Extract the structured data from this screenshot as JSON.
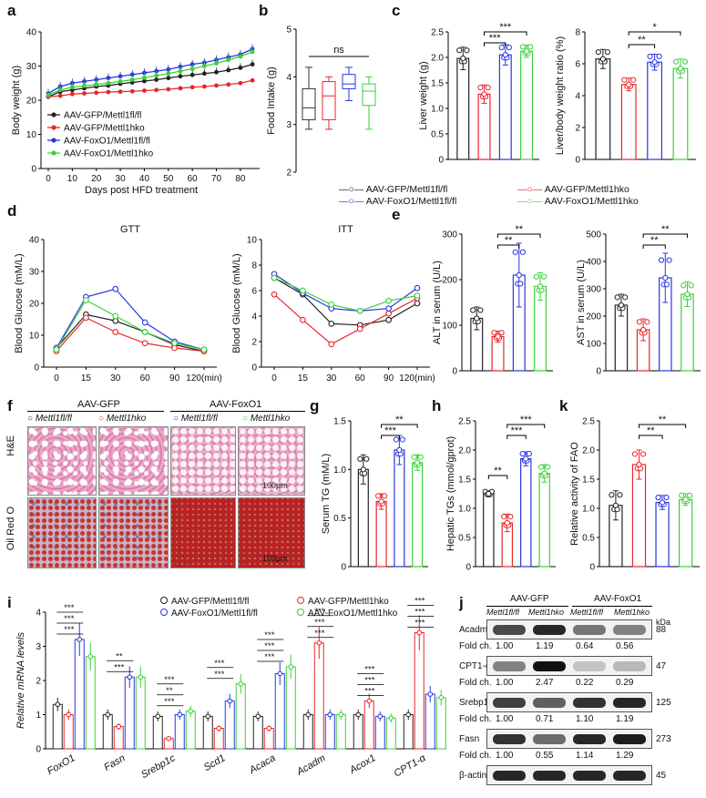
{
  "panel_letters": [
    "a",
    "b",
    "c",
    "d",
    "e",
    "f",
    "g",
    "h",
    "k",
    "i",
    "j"
  ],
  "colors": {
    "gfp_fl": "#222222",
    "gfp_hko": "#e8262a",
    "foxo_fl": "#2a36e0",
    "foxo_hko": "#3ccf3c",
    "box_gfp_fl": "#333333",
    "box_gfp_hko": "#e8262a",
    "box_foxo_fl": "#2a36e0",
    "box_foxo_hko": "#3ccf3c"
  },
  "legend_groups": [
    "AAV-GFP/Mettl1fl/fl",
    "AAV-GFP/Mettl1hko",
    "AAV-FoxO1/Mettl1fl/fl",
    "AAV-FoxO1/Mettl1hko"
  ],
  "chart_data": [
    {
      "id": "a",
      "type": "line",
      "ylabel": "Body weight (g)",
      "xlabel": "Days post HFD treatment",
      "ylim": [
        0,
        40
      ],
      "yticks": [
        0,
        10,
        20,
        30,
        40
      ],
      "xticks": [
        0,
        10,
        20,
        30,
        40,
        50,
        60,
        70,
        80
      ],
      "x": [
        0,
        5,
        10,
        15,
        20,
        25,
        30,
        35,
        40,
        45,
        50,
        55,
        60,
        65,
        70,
        75,
        80,
        85
      ],
      "series": [
        {
          "name": "AAV-GFP/Mettl1fl/fl",
          "values": [
            21,
            22.5,
            23,
            23.5,
            24,
            24.3,
            24.8,
            25.2,
            25.6,
            26,
            26.5,
            27,
            27.4,
            27.8,
            28.2,
            28.8,
            29.5,
            30.5
          ]
        },
        {
          "name": "AAV-GFP/Mettl1hko",
          "values": [
            21,
            21.3,
            21.8,
            22,
            22.2,
            22.4,
            22.5,
            22.6,
            22.8,
            23,
            23.2,
            23.5,
            23.8,
            24,
            24.3,
            24.6,
            25,
            25.8
          ]
        },
        {
          "name": "AAV-FoxO1/Mettl1fl/fl",
          "values": [
            22,
            24,
            25,
            25.5,
            26,
            26.5,
            27,
            27.5,
            28,
            28.5,
            29,
            29.8,
            30.5,
            31,
            31.8,
            32.6,
            33.4,
            35
          ]
        },
        {
          "name": "AAV-FoxO1/Mettl1hko",
          "values": [
            21.5,
            23,
            23.8,
            24.2,
            24.6,
            25,
            25.5,
            26,
            26.6,
            27.2,
            27.8,
            28.5,
            29.2,
            30,
            30.8,
            31.8,
            32.8,
            34.2
          ]
        }
      ]
    },
    {
      "id": "b",
      "type": "box",
      "ylabel": "Food Intake (g)",
      "ylim": [
        2,
        5
      ],
      "yticks": [
        2,
        3,
        4,
        5
      ],
      "annotation": "ns",
      "boxes": [
        {
          "min": 2.9,
          "q1": 3.1,
          "median": 3.35,
          "q3": 3.75,
          "max": 4.2
        },
        {
          "min": 2.9,
          "q1": 3.1,
          "median": 3.6,
          "q3": 3.9,
          "max": 4.0
        },
        {
          "min": 3.5,
          "q1": 3.75,
          "median": 3.85,
          "q3": 4.05,
          "max": 4.2
        },
        {
          "min": 2.9,
          "q1": 3.4,
          "median": 3.7,
          "q3": 3.85,
          "max": 4.0
        }
      ]
    },
    {
      "id": "c1",
      "type": "bar",
      "ylabel": "Liver weight (g)",
      "ylim": [
        0,
        2.5
      ],
      "yticks": [
        "0",
        "0.5",
        "1.0",
        "1.5",
        "2.0",
        "2.5"
      ],
      "values": [
        1.98,
        1.28,
        2.05,
        2.12
      ],
      "errors": [
        0.22,
        0.18,
        0.2,
        0.12
      ],
      "sig": [
        "***",
        "***"
      ]
    },
    {
      "id": "c2",
      "type": "bar",
      "ylabel": "Liver/body weight ratio (%)",
      "ylim": [
        0,
        8
      ],
      "yticks": [
        "0",
        "2",
        "4",
        "6",
        "8"
      ],
      "values": [
        6.3,
        4.7,
        6.1,
        5.7
      ],
      "errors": [
        0.6,
        0.4,
        0.5,
        0.6
      ],
      "sig": [
        "**",
        "*"
      ]
    },
    {
      "id": "d1",
      "type": "line",
      "title": "GTT",
      "ylabel": "Blood Glucose (mM/L)",
      "ylim": [
        0,
        40
      ],
      "yticks": [
        0,
        10,
        20,
        30,
        40
      ],
      "categories": [
        "0",
        "15",
        "30",
        "60",
        "90",
        "120(min)"
      ],
      "series": [
        {
          "name": "AAV-GFP/Mettl1fl/fl",
          "values": [
            6,
            16.5,
            14.5,
            11,
            7,
            5
          ]
        },
        {
          "name": "AAV-GFP/Mettl1hko",
          "values": [
            5,
            15.5,
            11,
            7.5,
            6,
            5
          ]
        },
        {
          "name": "AAV-FoxO1/Mettl1fl/fl",
          "values": [
            6,
            22,
            24.5,
            14,
            8,
            5.5
          ]
        },
        {
          "name": "AAV-FoxO1/Mettl1hko",
          "values": [
            5.5,
            21,
            16,
            11,
            7.5,
            5.5
          ]
        }
      ]
    },
    {
      "id": "d2",
      "type": "line",
      "title": "ITT",
      "ylabel": "Blood Glucose (mM/L)",
      "ylim": [
        0,
        10
      ],
      "yticks": [
        0,
        2,
        4,
        6,
        8,
        10
      ],
      "categories": [
        "0",
        "15",
        "30",
        "60",
        "90",
        "120(min)"
      ],
      "series": [
        {
          "name": "AAV-GFP/Mettl1fl/fl",
          "values": [
            7,
            5.7,
            3.4,
            3.3,
            3.7,
            5
          ]
        },
        {
          "name": "AAV-GFP/Mettl1hko",
          "values": [
            5.7,
            3.7,
            1.8,
            3,
            4.2,
            5.4
          ]
        },
        {
          "name": "AAV-FoxO1/Mettl1fl/fl",
          "values": [
            7.3,
            5.8,
            4.6,
            4.4,
            4.6,
            6.2
          ]
        },
        {
          "name": "AAV-FoxO1/Mettl1hko",
          "values": [
            7,
            6,
            4.9,
            4.4,
            5.2,
            5.6
          ]
        }
      ]
    },
    {
      "id": "e1",
      "type": "bar",
      "ylabel": "ALT in serum (U/L)",
      "ylim": [
        0,
        300
      ],
      "yticks": [
        "0",
        "100",
        "200",
        "300"
      ],
      "values": [
        115,
        75,
        210,
        185
      ],
      "errors": [
        25,
        12,
        70,
        30
      ],
      "sig": [
        "**",
        "**"
      ]
    },
    {
      "id": "e2",
      "type": "bar",
      "ylabel": "AST in serum (U/L)",
      "ylim": [
        0,
        500
      ],
      "yticks": [
        "0",
        "100",
        "200",
        "300",
        "400",
        "500"
      ],
      "values": [
        240,
        150,
        340,
        280
      ],
      "errors": [
        40,
        40,
        90,
        45
      ],
      "sig": [
        "**",
        "**"
      ]
    },
    {
      "id": "g",
      "type": "bar",
      "ylabel": "Serum TG (mM/L)",
      "ylim": [
        0,
        1.5
      ],
      "yticks": [
        "0",
        "0.5",
        "1.0",
        "1.5"
      ],
      "values": [
        1.0,
        0.67,
        1.2,
        1.07
      ],
      "errors": [
        0.15,
        0.08,
        0.15,
        0.08
      ],
      "sig": [
        "***",
        "**"
      ]
    },
    {
      "id": "h",
      "type": "bar",
      "ylabel": "Hepatic TGs (mmol/gprot)",
      "ylim": [
        0,
        2.5
      ],
      "yticks": [
        "0",
        "0.5",
        "1.0",
        "1.5",
        "2.0",
        "2.5"
      ],
      "values": [
        1.25,
        0.75,
        1.85,
        1.6
      ],
      "errors": [
        0.05,
        0.15,
        0.12,
        0.15
      ],
      "sig": [
        "**",
        "***",
        "***"
      ]
    },
    {
      "id": "k",
      "type": "bar",
      "ylabel": "Relative activity of FAO",
      "ylim": [
        0,
        2.5
      ],
      "yticks": [
        "0",
        "0.5",
        "1.0",
        "1.5",
        "2.0",
        "2.5"
      ],
      "values": [
        1.05,
        1.75,
        1.1,
        1.15
      ],
      "errors": [
        0.25,
        0.25,
        0.12,
        0.1
      ],
      "sig": [
        "**",
        "**"
      ]
    },
    {
      "id": "i",
      "type": "bar",
      "ylabel": "Relative mRNA levels",
      "ylim": [
        0,
        4
      ],
      "yticks": [
        "0",
        "1",
        "2",
        "3",
        "4"
      ],
      "categories": [
        "FoxO1",
        "Fasn",
        "Srebp1c",
        "Scd1",
        "Acaca",
        "Acadm",
        "Acox1",
        "CPT1-α"
      ],
      "series": [
        {
          "name": "AAV-GFP/Mettl1fl/fl",
          "values": [
            1.3,
            1.0,
            0.95,
            0.95,
            0.95,
            1.0,
            1.0,
            1.0
          ]
        },
        {
          "name": "AAV-GFP/Mettl1hko",
          "values": [
            1.0,
            0.65,
            0.3,
            0.6,
            0.6,
            3.1,
            1.4,
            3.4
          ]
        },
        {
          "name": "AAV-FoxO1/Mettl1fl/fl",
          "values": [
            3.2,
            2.1,
            1.0,
            1.4,
            2.2,
            1.0,
            0.95,
            1.6
          ]
        },
        {
          "name": "AAV-FoxO1/Mettl1hko",
          "values": [
            2.7,
            2.1,
            1.1,
            1.9,
            2.4,
            1.0,
            0.9,
            1.5
          ]
        }
      ],
      "sig_labels": [
        "***",
        "***",
        "***",
        "***",
        "**",
        "***",
        "**",
        "***",
        "***",
        "***",
        "***",
        "***",
        "***",
        "***",
        "***",
        "***",
        "***",
        "***",
        "***",
        "***",
        "***",
        "***"
      ]
    }
  ],
  "panel_f": {
    "group_gfp": "AAV-GFP",
    "group_foxo": "AAV-FoxO1",
    "row_he": "H&E",
    "row_oro": "Oil Red O",
    "scale": "100μm",
    "cols": [
      "Mettl1fl/fl",
      "Mettl1hko",
      "Mettl1fl/fl",
      "Mettl1hko"
    ]
  },
  "panel_j": {
    "group_gfp": "AAV-GFP",
    "group_foxo": "AAV-FoxO1",
    "cols": [
      "Mettl1fl/fl",
      "Mettl1hko",
      "Mettl1fl/fl",
      "Mettl1hko"
    ],
    "kda": "kDa",
    "fold_label": "Fold ch.",
    "rows": [
      {
        "name": "Acadm",
        "kda": "88",
        "fold": [
          "1.00",
          "1.19",
          "0.64",
          "0.56"
        ],
        "intensity": [
          0.75,
          0.9,
          0.55,
          0.5
        ]
      },
      {
        "name": "CPT1-α",
        "kda": "47",
        "fold": [
          "1.00",
          "2.47",
          "0.22",
          "0.29"
        ],
        "intensity": [
          0.5,
          1.0,
          0.2,
          0.25
        ]
      },
      {
        "name": "Srebp1c",
        "kda": "125",
        "fold": [
          "1.00",
          "0.71",
          "1.10",
          "1.19"
        ],
        "intensity": [
          0.8,
          0.65,
          0.85,
          0.9
        ]
      },
      {
        "name": "Fasn",
        "kda": "273",
        "fold": [
          "1.00",
          "0.55",
          "1.14",
          "1.29"
        ],
        "intensity": [
          0.85,
          0.6,
          0.9,
          0.95
        ]
      },
      {
        "name": "β-actin",
        "kda": "45",
        "fold": null,
        "intensity": [
          0.9,
          0.9,
          0.9,
          0.9
        ]
      }
    ]
  }
}
